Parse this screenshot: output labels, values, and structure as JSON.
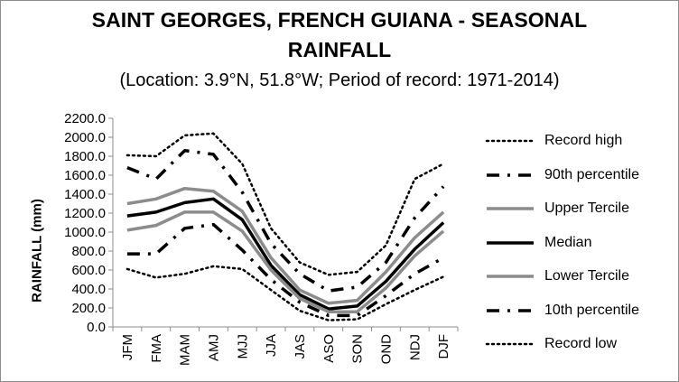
{
  "chart_data": {
    "type": "line",
    "title": "SAINT GEORGES, FRENCH GUIANA - SEASONAL",
    "title_line2": "RAINFALL",
    "subtitle": "(Location: 3.9°N, 51.8°W; Period of record: 1971-2014)",
    "ylabel": "RAINFALL (mm)",
    "xlabel": "",
    "ylim": [
      0,
      2200
    ],
    "y_ticks": [
      "0.0",
      "200.0",
      "400.0",
      "600.0",
      "800.0",
      "1000.0",
      "1200.0",
      "1400.0",
      "1600.0",
      "1800.0",
      "2000.0",
      "2200.0"
    ],
    "categories": [
      "JFM",
      "FMA",
      "MAM",
      "AMJ",
      "MJJ",
      "JJA",
      "JAS",
      "ASO",
      "SON",
      "OND",
      "NDJ",
      "DJF"
    ],
    "legend_position": "right",
    "grid": false,
    "series": [
      {
        "name": "Record high",
        "style": "dotted",
        "color": "#000000",
        "values": [
          1810,
          1800,
          2020,
          2040,
          1720,
          1040,
          680,
          550,
          580,
          860,
          1560,
          1720
        ]
      },
      {
        "name": "90th percentile",
        "style": "dashdot",
        "color": "#000000",
        "values": [
          1680,
          1560,
          1860,
          1820,
          1420,
          880,
          560,
          380,
          420,
          680,
          1150,
          1480
        ]
      },
      {
        "name": "Upper Tercile",
        "style": "solid-gray",
        "color": "#8c8c8c",
        "values": [
          1300,
          1350,
          1460,
          1430,
          1220,
          730,
          390,
          250,
          280,
          580,
          940,
          1210
        ]
      },
      {
        "name": "Median",
        "style": "solid-black",
        "color": "#000000",
        "values": [
          1170,
          1210,
          1310,
          1350,
          1130,
          650,
          340,
          190,
          220,
          480,
          820,
          1100
        ]
      },
      {
        "name": "Lower Tercile",
        "style": "solid-gray",
        "color": "#8c8c8c",
        "values": [
          1020,
          1070,
          1210,
          1210,
          1010,
          600,
          300,
          160,
          160,
          410,
          750,
          1010
        ]
      },
      {
        "name": "10th percentile",
        "style": "dashdot",
        "color": "#000000",
        "values": [
          770,
          770,
          1040,
          1080,
          810,
          500,
          260,
          120,
          120,
          330,
          560,
          730
        ]
      },
      {
        "name": "Record low",
        "style": "dotted",
        "color": "#000000",
        "values": [
          610,
          520,
          560,
          640,
          610,
          390,
          170,
          70,
          80,
          240,
          390,
          530
        ]
      }
    ]
  }
}
